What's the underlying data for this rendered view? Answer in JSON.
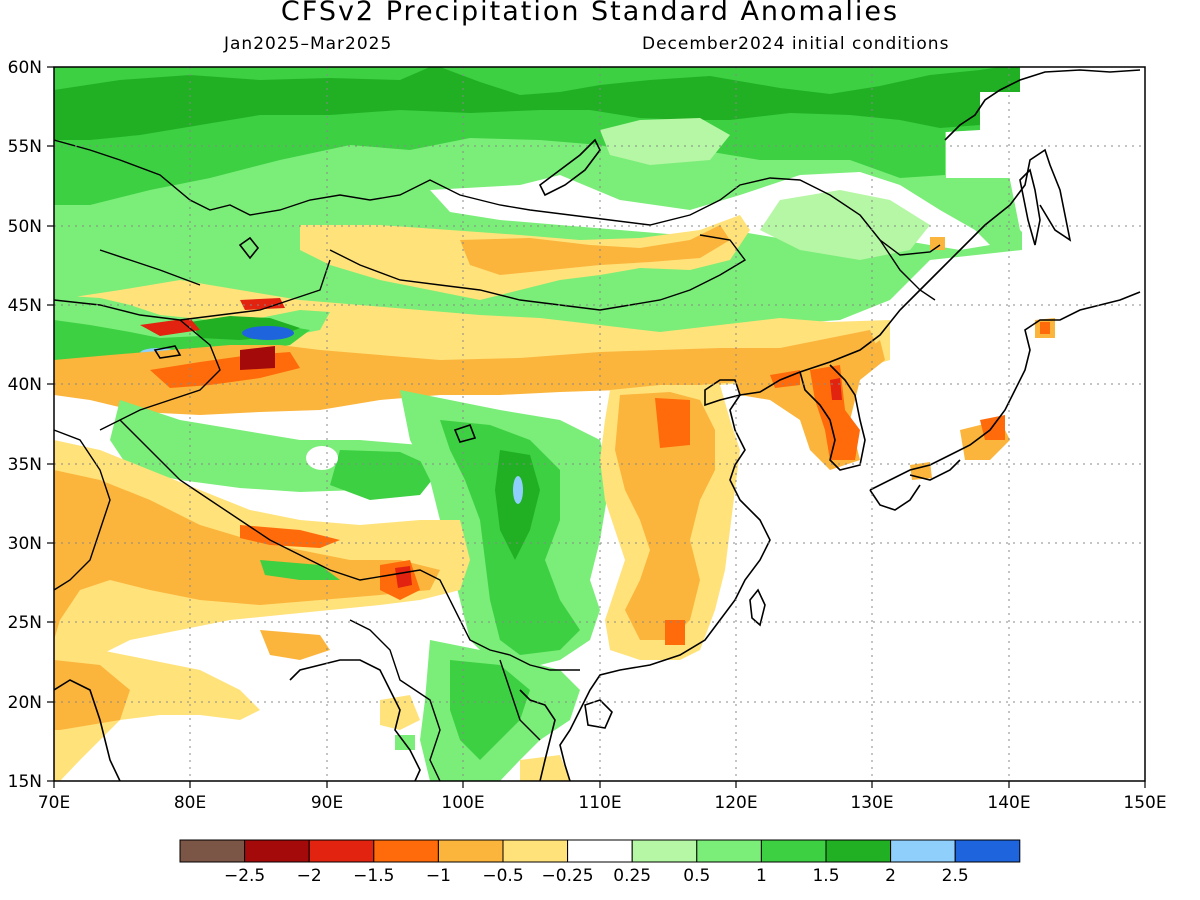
{
  "title": "CFSv2 Precipitation Standard Anomalies",
  "period": "Jan2025–Mar2025",
  "initial_conditions": "December2024 initial conditions",
  "map": {
    "lon_range": [
      70,
      150
    ],
    "lat_range": [
      15,
      60
    ],
    "x_ticks": [
      "70E",
      "80E",
      "90E",
      "100E",
      "110E",
      "120E",
      "130E",
      "140E",
      "150E"
    ],
    "y_ticks": [
      "60N",
      "55N",
      "50N",
      "45N",
      "40N",
      "35N",
      "30N",
      "25N",
      "20N",
      "15N"
    ],
    "gridlines": "dotted",
    "regions": [
      {
        "name": "northern band",
        "category": "0.5-1"
      },
      {
        "name": "Mongolia/northeast China",
        "category": "-1 to -0.5"
      },
      {
        "name": "Tibetan plateau",
        "category": "1-1.5"
      },
      {
        "name": "east China",
        "category": "-1 to -0.5"
      },
      {
        "name": "Korea",
        "category": "-1.5 to -1"
      },
      {
        "name": "western Himalaya",
        "category": "-1 to -0.5"
      }
    ]
  },
  "legend": {
    "labels": [
      "−2.5",
      "−2",
      "−1.5",
      "−1",
      "−0.5",
      "−0.25",
      "0.25",
      "0.5",
      "1",
      "1.5",
      "2",
      "2.5"
    ],
    "colors": [
      "#7b5546",
      "#a50a0a",
      "#e1230f",
      "#ff6a0a",
      "#fbb43c",
      "#ffe27a",
      "#ffffff",
      "#b5f7a4",
      "#7aee78",
      "#3cd042",
      "#21b024",
      "#8ed0fb",
      "#1e64dc"
    ]
  }
}
